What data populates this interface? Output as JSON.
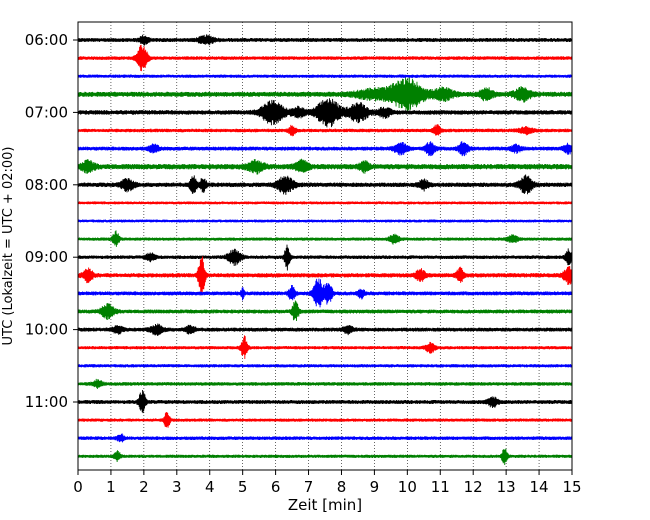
{
  "chart_data": {
    "type": "line",
    "title": "",
    "xlabel": "Zeit  [min]",
    "ylabel": "UTC (Lokalzeit = UTC + 02:00)",
    "xlim": [
      0,
      15
    ],
    "x_ticks": [
      "0",
      "1",
      "2",
      "3",
      "4",
      "5",
      "6",
      "7",
      "8",
      "9",
      "10",
      "11",
      "12",
      "13",
      "14",
      "15"
    ],
    "y_tick_labels": [
      "06:00",
      "07:00",
      "08:00",
      "09:00",
      "10:00",
      "11:00"
    ],
    "y_tick_trace_index": [
      0,
      4,
      8,
      12,
      16,
      20
    ],
    "grid": "vertical dotted at each minute",
    "trace_colors": [
      "#000000",
      "#ff0000",
      "#0000ff",
      "#008000"
    ],
    "traces": [
      {
        "start": "06:00",
        "color": "#000000",
        "base_amp": 0.22,
        "events": [
          [
            2.0,
            0.4,
            0.15
          ],
          [
            3.9,
            0.4,
            0.25
          ]
        ]
      },
      {
        "start": "06:15",
        "color": "#ff0000",
        "base_amp": 0.2,
        "events": [
          [
            1.95,
            1.5,
            0.15
          ]
        ]
      },
      {
        "start": "06:30",
        "color": "#0000ff",
        "base_amp": 0.18,
        "events": []
      },
      {
        "start": "06:45",
        "color": "#008000",
        "base_amp": 0.28,
        "events": [
          [
            9.0,
            0.5,
            0.6
          ],
          [
            10.0,
            1.6,
            0.5
          ],
          [
            11.1,
            0.6,
            0.3
          ],
          [
            12.4,
            0.6,
            0.2
          ],
          [
            13.5,
            0.7,
            0.25
          ]
        ]
      },
      {
        "start": "07:00",
        "color": "#000000",
        "base_amp": 0.25,
        "events": [
          [
            5.9,
            1.2,
            0.35
          ],
          [
            6.7,
            0.5,
            0.2
          ],
          [
            7.6,
            1.5,
            0.35
          ],
          [
            8.5,
            1.0,
            0.3
          ],
          [
            9.3,
            0.5,
            0.2
          ]
        ]
      },
      {
        "start": "07:15",
        "color": "#ff0000",
        "base_amp": 0.2,
        "events": [
          [
            6.5,
            0.5,
            0.1
          ],
          [
            10.9,
            0.6,
            0.1
          ],
          [
            13.6,
            0.35,
            0.2
          ]
        ]
      },
      {
        "start": "07:30",
        "color": "#0000ff",
        "base_amp": 0.22,
        "events": [
          [
            2.3,
            0.4,
            0.15
          ],
          [
            9.8,
            0.6,
            0.2
          ],
          [
            10.7,
            0.7,
            0.15
          ],
          [
            11.7,
            0.7,
            0.15
          ],
          [
            13.3,
            0.4,
            0.15
          ],
          [
            14.9,
            0.5,
            0.15
          ]
        ]
      },
      {
        "start": "07:45",
        "color": "#008000",
        "base_amp": 0.3,
        "events": [
          [
            0.3,
            0.6,
            0.2
          ],
          [
            5.4,
            0.6,
            0.25
          ],
          [
            6.8,
            0.6,
            0.2
          ],
          [
            8.7,
            0.5,
            0.15
          ]
        ]
      },
      {
        "start": "08:00",
        "color": "#000000",
        "base_amp": 0.25,
        "events": [
          [
            1.5,
            0.6,
            0.2
          ],
          [
            3.5,
            0.9,
            0.1
          ],
          [
            3.8,
            0.7,
            0.1
          ],
          [
            6.3,
            0.9,
            0.25
          ],
          [
            10.5,
            0.5,
            0.15
          ],
          [
            13.6,
            0.9,
            0.2
          ]
        ]
      },
      {
        "start": "08:15",
        "color": "#ff0000",
        "base_amp": 0.16,
        "events": []
      },
      {
        "start": "08:30",
        "color": "#0000ff",
        "base_amp": 0.16,
        "events": []
      },
      {
        "start": "08:45",
        "color": "#008000",
        "base_amp": 0.18,
        "events": [
          [
            1.15,
            0.8,
            0.1
          ],
          [
            9.6,
            0.5,
            0.15
          ],
          [
            13.2,
            0.4,
            0.15
          ]
        ]
      },
      {
        "start": "09:00",
        "color": "#000000",
        "base_amp": 0.2,
        "events": [
          [
            2.2,
            0.4,
            0.15
          ],
          [
            4.75,
            0.8,
            0.2
          ],
          [
            6.35,
            1.3,
            0.08
          ],
          [
            14.9,
            0.8,
            0.1
          ]
        ]
      },
      {
        "start": "09:15",
        "color": "#ff0000",
        "base_amp": 0.24,
        "events": [
          [
            0.3,
            0.7,
            0.15
          ],
          [
            3.75,
            2.2,
            0.1
          ],
          [
            10.4,
            0.6,
            0.15
          ],
          [
            11.6,
            0.8,
            0.1
          ],
          [
            14.9,
            0.9,
            0.15
          ]
        ]
      },
      {
        "start": "09:30",
        "color": "#0000ff",
        "base_amp": 0.22,
        "events": [
          [
            5.0,
            0.6,
            0.05
          ],
          [
            6.5,
            0.8,
            0.1
          ],
          [
            7.3,
            1.6,
            0.15
          ],
          [
            7.6,
            1.1,
            0.12
          ],
          [
            8.6,
            0.5,
            0.1
          ]
        ]
      },
      {
        "start": "09:45",
        "color": "#008000",
        "base_amp": 0.22,
        "events": [
          [
            0.9,
            0.8,
            0.2
          ],
          [
            6.6,
            1.1,
            0.1
          ]
        ]
      },
      {
        "start": "10:00",
        "color": "#000000",
        "base_amp": 0.22,
        "events": [
          [
            1.2,
            0.4,
            0.15
          ],
          [
            2.4,
            0.5,
            0.2
          ],
          [
            3.4,
            0.4,
            0.15
          ],
          [
            8.2,
            0.4,
            0.15
          ]
        ]
      },
      {
        "start": "10:15",
        "color": "#ff0000",
        "base_amp": 0.18,
        "events": [
          [
            5.05,
            1.2,
            0.1
          ],
          [
            10.7,
            0.5,
            0.15
          ]
        ]
      },
      {
        "start": "10:30",
        "color": "#0000ff",
        "base_amp": 0.18,
        "events": []
      },
      {
        "start": "10:45",
        "color": "#008000",
        "base_amp": 0.2,
        "events": [
          [
            0.6,
            0.4,
            0.15
          ]
        ]
      },
      {
        "start": "11:00",
        "color": "#000000",
        "base_amp": 0.22,
        "events": [
          [
            1.95,
            1.2,
            0.1
          ],
          [
            12.6,
            0.5,
            0.15
          ]
        ]
      },
      {
        "start": "11:15",
        "color": "#ff0000",
        "base_amp": 0.18,
        "events": [
          [
            2.7,
            1.1,
            0.08
          ]
        ]
      },
      {
        "start": "11:30",
        "color": "#0000ff",
        "base_amp": 0.2,
        "events": [
          [
            1.3,
            0.4,
            0.1
          ]
        ]
      },
      {
        "start": "11:45",
        "color": "#008000",
        "base_amp": 0.18,
        "events": [
          [
            1.2,
            0.5,
            0.1
          ],
          [
            12.95,
            0.9,
            0.08
          ]
        ]
      }
    ]
  }
}
